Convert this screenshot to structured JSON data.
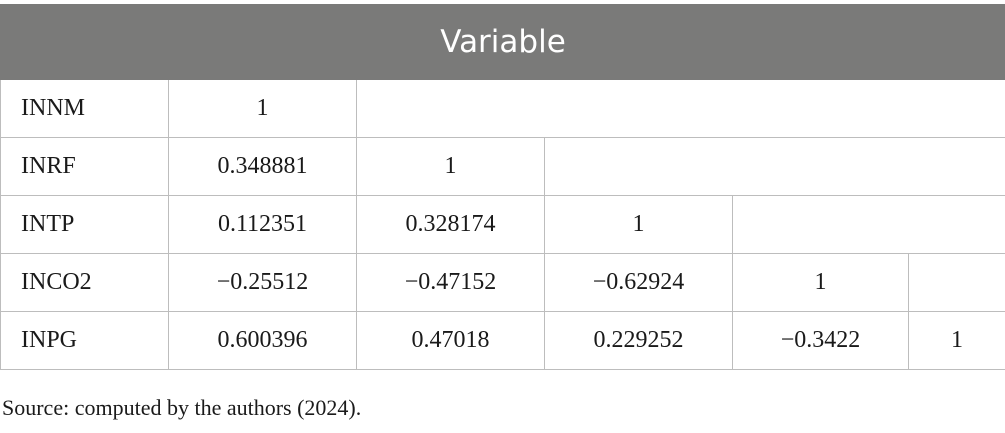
{
  "table": {
    "header": "Variable",
    "rows": [
      {
        "label": "INNM",
        "values": [
          "1"
        ]
      },
      {
        "label": "INRF",
        "values": [
          "0.348881",
          "1"
        ]
      },
      {
        "label": "INTP",
        "values": [
          "0.112351",
          "0.328174",
          "1"
        ]
      },
      {
        "label": "INCO2",
        "values": [
          "−0.25512",
          "−0.47152",
          "−0.62924",
          "1"
        ]
      },
      {
        "label": "INPG",
        "values": [
          "0.600396",
          "0.47018",
          "0.229252",
          "−0.3422",
          "1"
        ]
      }
    ]
  },
  "source_note": "Source: computed by the authors (2024)."
}
